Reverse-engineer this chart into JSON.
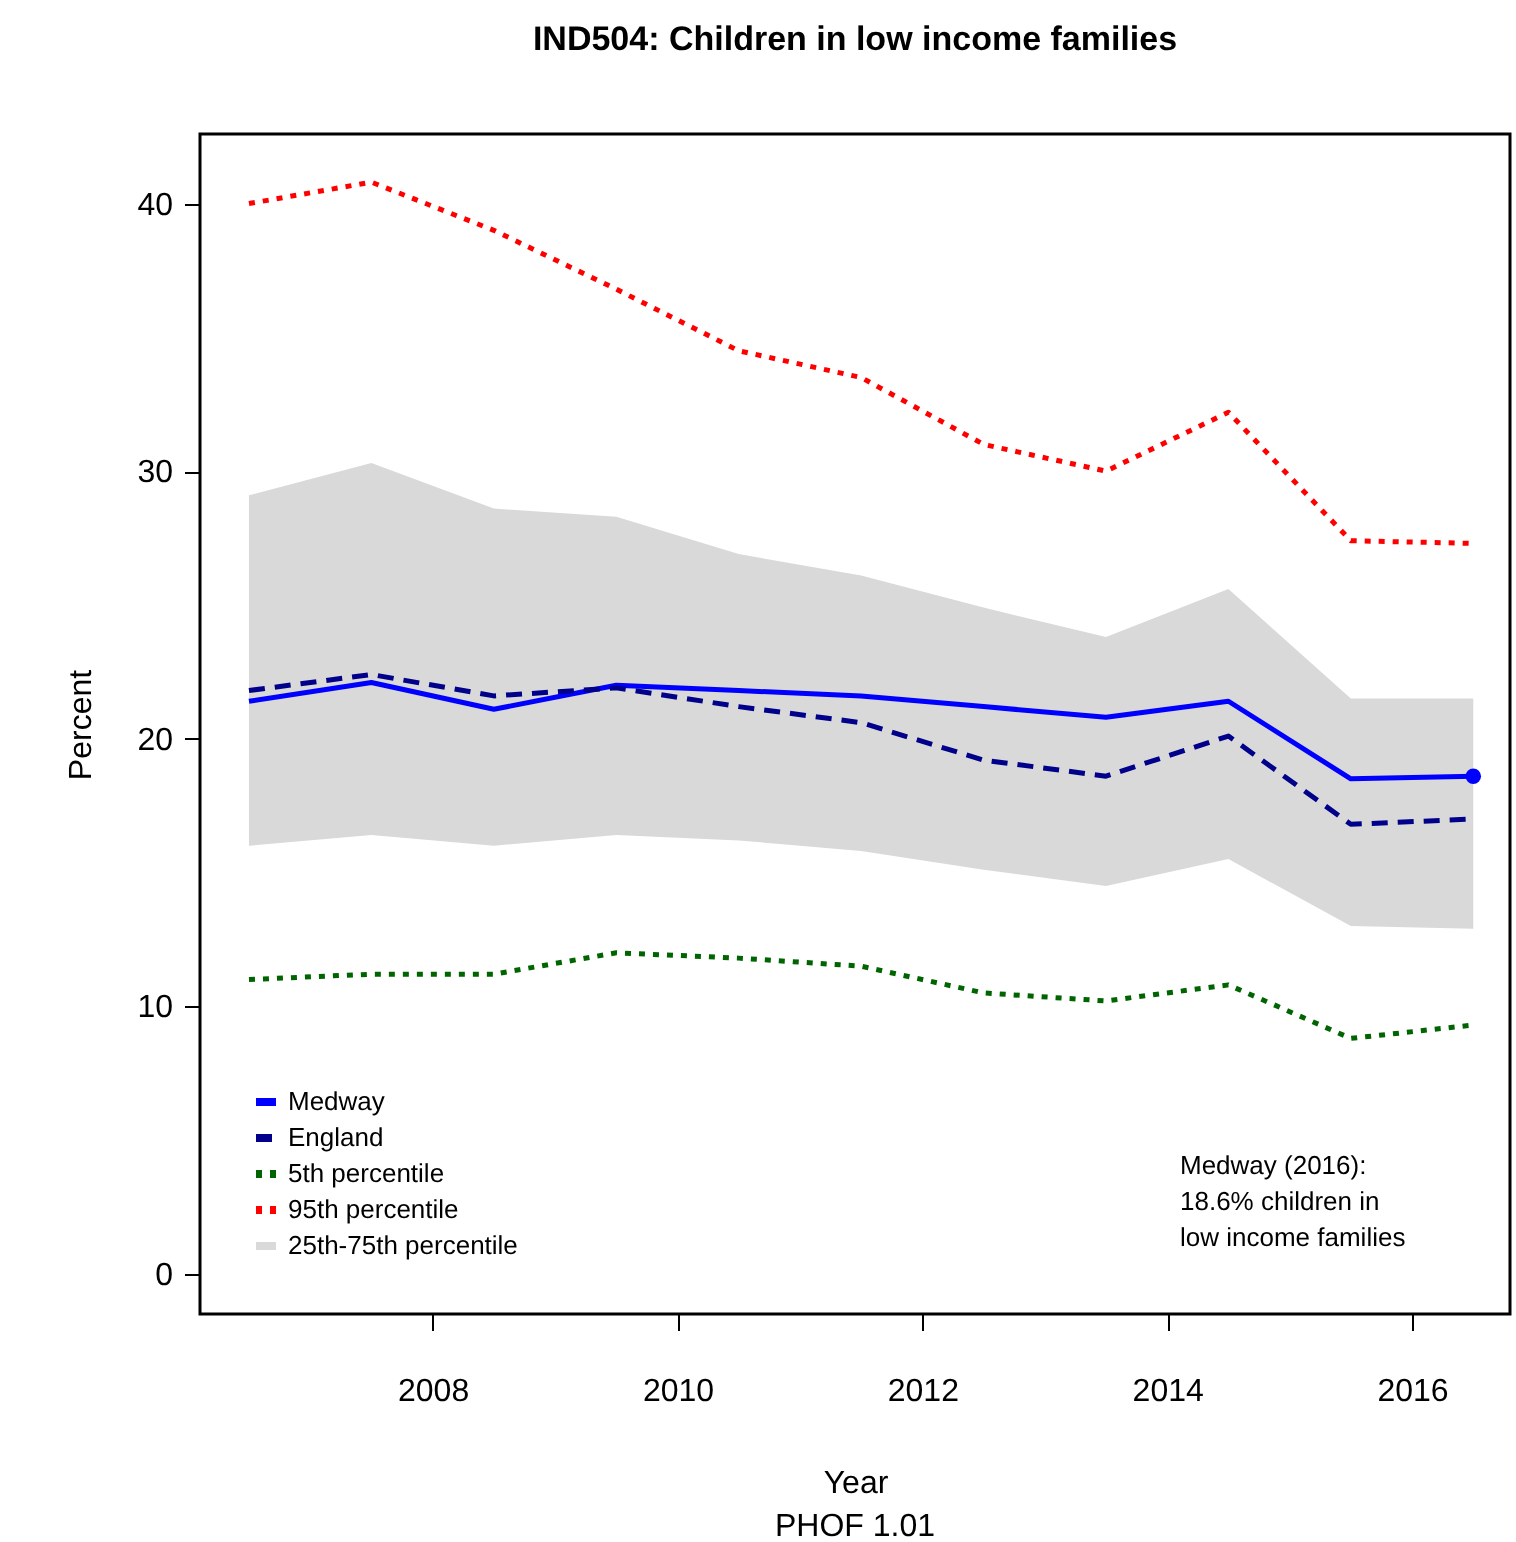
{
  "chart_data": {
    "type": "line",
    "title": "IND504: Children in low income families",
    "xlabel": "Year",
    "ylabel": "Percent",
    "x": [
      2006.5,
      2007.5,
      2008.5,
      2009.5,
      2010.5,
      2011.5,
      2012.5,
      2013.5,
      2014.5,
      2015.5,
      2016.5
    ],
    "series": [
      {
        "name": "25th-75th percentile",
        "type": "area",
        "color": "#d9d9d9",
        "values": [
          null,
          null,
          null,
          null,
          null,
          null,
          null,
          null,
          null,
          null,
          null
        ],
        "lower": [
          16.0,
          16.4,
          16.0,
          16.4,
          16.2,
          15.8,
          15.1,
          14.5,
          15.5,
          13.0,
          12.9
        ],
        "upper": [
          29.1,
          30.3,
          28.6,
          28.3,
          26.9,
          26.1,
          24.9,
          23.8,
          25.6,
          21.5,
          21.5
        ]
      },
      {
        "name": "Medway",
        "color": "#0000ff",
        "line_style": "solid",
        "values": [
          21.4,
          22.1,
          21.1,
          22.0,
          21.8,
          21.6,
          21.2,
          20.8,
          21.4,
          18.5,
          18.6
        ]
      },
      {
        "name": "England",
        "color": "#00008b",
        "line_style": "dashed",
        "values": [
          21.8,
          22.4,
          21.6,
          21.9,
          21.2,
          20.6,
          19.2,
          18.6,
          20.1,
          16.8,
          17.0
        ]
      },
      {
        "name": "5th percentile",
        "color": "#006400",
        "line_style": "dotted",
        "values": [
          11.0,
          11.2,
          11.2,
          12.0,
          11.8,
          11.5,
          10.5,
          10.2,
          10.8,
          8.8,
          9.3
        ]
      },
      {
        "name": "95th percentile",
        "color": "#ff0000",
        "line_style": "dotted",
        "values": [
          40.0,
          40.8,
          39.0,
          36.8,
          34.5,
          33.5,
          31.0,
          30.0,
          32.2,
          27.4,
          27.3
        ]
      },
      {
        "type": "scatter",
        "color": "#0000ff",
        "marker": "circle",
        "x": [
          2016.5
        ],
        "values": [
          18.6
        ]
      }
    ],
    "xlim": [
      2006.1,
      2016.8
    ],
    "xticks": [
      2008,
      2010,
      2012,
      2014,
      2016
    ],
    "ylim": [
      -1.5,
      42.6
    ],
    "yticks": [
      0,
      10,
      20,
      30,
      40
    ],
    "grid": false,
    "legend": "bottom left",
    "annotations": [
      "Medway (2016):\n18.6% children in\nlow income families",
      "PHOF 1.01"
    ]
  }
}
